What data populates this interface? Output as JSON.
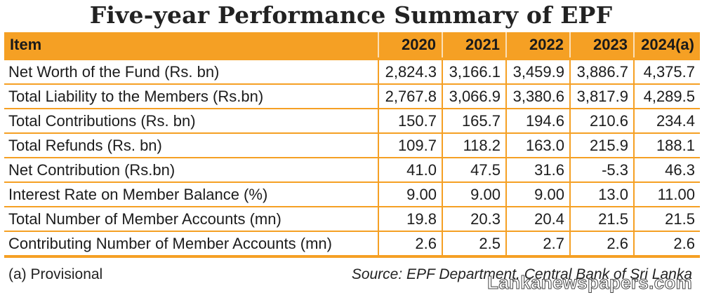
{
  "title": "Five-year Performance Summary of EPF",
  "table": {
    "headers": [
      "Item",
      "2020",
      "2021",
      "2022",
      "2023",
      "2024(a)"
    ],
    "rows": [
      [
        "Net Worth of the Fund (Rs. bn)",
        "2,824.3",
        "3,166.1",
        "3,459.9",
        "3,886.7",
        "4,375.7"
      ],
      [
        "Total Liability to the Members (Rs.bn)",
        "2,767.8",
        "3,066.9",
        "3,380.6",
        "3,817.9",
        "4,289.5"
      ],
      [
        "Total Contributions (Rs. bn)",
        "150.7",
        "165.7",
        "194.6",
        "210.6",
        "234.4"
      ],
      [
        "Total Refunds (Rs. bn)",
        "109.7",
        "118.2",
        "163.0",
        "215.9",
        "188.1"
      ],
      [
        "Net Contribution (Rs.bn)",
        "41.0",
        "47.5",
        "31.6",
        "-5.3",
        "46.3"
      ],
      [
        "Interest Rate on Member Balance (%)",
        "9.00",
        "9.00",
        "9.00",
        "13.0",
        "11.00"
      ],
      [
        "Total Number of Member Accounts (mn)",
        "19.8",
        "20.3",
        "20.4",
        "21.5",
        "21.5"
      ],
      [
        "Contributing Number of Member Accounts (mn)",
        "2.6",
        "2.5",
        "2.7",
        "2.6",
        "2.6"
      ]
    ]
  },
  "footnote": "(a) Provisional",
  "source": "Source: EPF Department, Central Bank of Sri Lanka",
  "watermark": "Lankanewspapers.com",
  "colors": {
    "accent": "#f5a024",
    "header_text": "#1a1a1a",
    "body_text": "#1c1c1c"
  }
}
